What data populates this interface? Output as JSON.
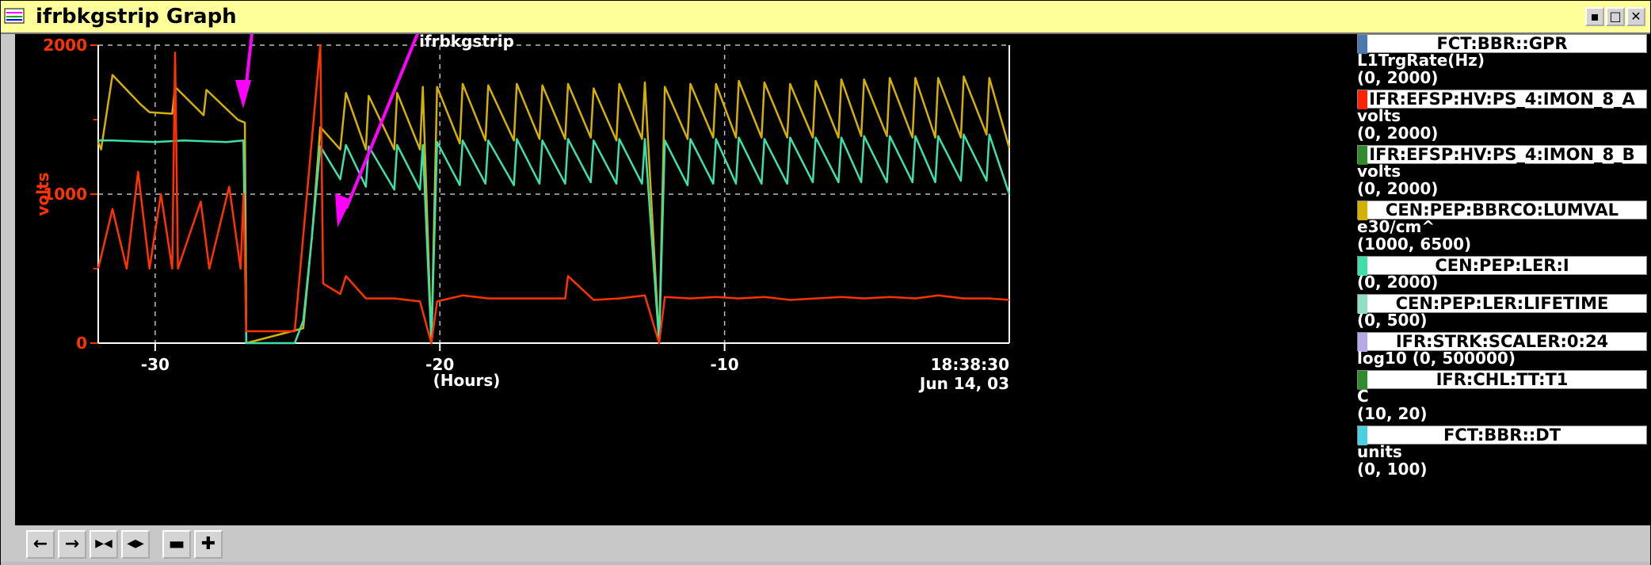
{
  "window": {
    "title": "ifrbkgstrip Graph",
    "buttons": [
      "▪",
      "□",
      "✕"
    ]
  },
  "chart_data": {
    "type": "line",
    "title": "ifrbkgstrip",
    "ylabel": "volts",
    "xlabel": "(Hours)",
    "xlim": [
      -32,
      0
    ],
    "ylim": [
      0,
      2000
    ],
    "x_ticks": [
      -30,
      -20,
      -10
    ],
    "x_tick_labels": [
      "-30",
      "-20",
      "-10"
    ],
    "y_ticks": [
      0,
      1000,
      2000
    ],
    "y_tick_labels": [
      "0",
      "1000",
      "2000"
    ],
    "end_time": "18:38:30",
    "end_date": "Jun 14, 03",
    "grid": true,
    "series": [
      {
        "name": "CEN:PEP:BBRCO:LUMVAL",
        "color": "#d4b000",
        "points": [
          [
            -32,
            1350
          ],
          [
            -31.9,
            1300
          ],
          [
            -31.5,
            1800
          ],
          [
            -30.5,
            1600
          ],
          [
            -30.2,
            1550
          ],
          [
            -29.4,
            1540
          ],
          [
            -29.3,
            1720
          ],
          [
            -28.3,
            1530
          ],
          [
            -28.2,
            1700
          ],
          [
            -27.1,
            1500
          ],
          [
            -26.85,
            1480
          ],
          [
            -26.8,
            0
          ],
          [
            -24.8,
            100
          ],
          [
            -24.5,
            700
          ],
          [
            -24.2,
            1450
          ],
          [
            -23.5,
            1300
          ],
          [
            -23.3,
            1680
          ],
          [
            -22.6,
            1300
          ],
          [
            -22.5,
            1660
          ],
          [
            -21.6,
            1300
          ],
          [
            -21.5,
            1680
          ],
          [
            -20.7,
            1300
          ],
          [
            -20.6,
            1720
          ],
          [
            -20.3,
            0
          ],
          [
            -20.1,
            1720
          ],
          [
            -19.3,
            1340
          ],
          [
            -19.2,
            1740
          ],
          [
            -18.4,
            1360
          ],
          [
            -18.3,
            1730
          ],
          [
            -17.4,
            1360
          ],
          [
            -17.3,
            1740
          ],
          [
            -16.5,
            1370
          ],
          [
            -16.4,
            1730
          ],
          [
            -15.6,
            1370
          ],
          [
            -15.5,
            1740
          ],
          [
            -14.7,
            1380
          ],
          [
            -14.6,
            1710
          ],
          [
            -13.8,
            1360
          ],
          [
            -13.7,
            1740
          ],
          [
            -12.9,
            1370
          ],
          [
            -12.8,
            1750
          ],
          [
            -12.3,
            0
          ],
          [
            -12.1,
            1720
          ],
          [
            -11.3,
            1370
          ],
          [
            -11.2,
            1740
          ],
          [
            -10.4,
            1380
          ],
          [
            -10.3,
            1740
          ],
          [
            -9.6,
            1380
          ],
          [
            -9.5,
            1760
          ],
          [
            -8.7,
            1380
          ],
          [
            -8.6,
            1750
          ],
          [
            -7.8,
            1380
          ],
          [
            -7.7,
            1740
          ],
          [
            -6.9,
            1380
          ],
          [
            -6.8,
            1760
          ],
          [
            -6.0,
            1380
          ],
          [
            -5.9,
            1770
          ],
          [
            -5.2,
            1390
          ],
          [
            -5.1,
            1770
          ],
          [
            -4.3,
            1390
          ],
          [
            -4.2,
            1780
          ],
          [
            -3.4,
            1380
          ],
          [
            -3.3,
            1780
          ],
          [
            -2.6,
            1380
          ],
          [
            -2.5,
            1780
          ],
          [
            -1.7,
            1380
          ],
          [
            -1.6,
            1790
          ],
          [
            -0.8,
            1400
          ],
          [
            -0.7,
            1780
          ],
          [
            0,
            1310
          ]
        ]
      },
      {
        "name": "CEN:PEP:LER:I",
        "color": "#3ee0a8",
        "points": [
          [
            -32,
            1360
          ],
          [
            -31.5,
            1360
          ],
          [
            -30,
            1350
          ],
          [
            -29,
            1360
          ],
          [
            -27.5,
            1350
          ],
          [
            -26.9,
            1360
          ],
          [
            -26.8,
            0
          ],
          [
            -25.1,
            0
          ],
          [
            -24.8,
            150
          ],
          [
            -24.5,
            700
          ],
          [
            -24.2,
            1320
          ],
          [
            -23.5,
            1100
          ],
          [
            -23.3,
            1330
          ],
          [
            -22.6,
            1050
          ],
          [
            -22.5,
            1320
          ],
          [
            -21.6,
            1030
          ],
          [
            -21.5,
            1330
          ],
          [
            -20.7,
            1030
          ],
          [
            -20.6,
            1330
          ],
          [
            -20.3,
            0
          ],
          [
            -20.1,
            1350
          ],
          [
            -19.3,
            1060
          ],
          [
            -19.2,
            1360
          ],
          [
            -18.4,
            1070
          ],
          [
            -18.3,
            1360
          ],
          [
            -17.4,
            1060
          ],
          [
            -17.3,
            1370
          ],
          [
            -16.5,
            1070
          ],
          [
            -16.4,
            1360
          ],
          [
            -15.6,
            1070
          ],
          [
            -15.5,
            1370
          ],
          [
            -14.7,
            1080
          ],
          [
            -14.6,
            1360
          ],
          [
            -13.8,
            1070
          ],
          [
            -13.7,
            1370
          ],
          [
            -12.9,
            1070
          ],
          [
            -12.8,
            1370
          ],
          [
            -12.3,
            0
          ],
          [
            -12.1,
            1360
          ],
          [
            -11.3,
            1060
          ],
          [
            -11.2,
            1370
          ],
          [
            -10.4,
            1070
          ],
          [
            -10.3,
            1370
          ],
          [
            -9.6,
            1070
          ],
          [
            -9.5,
            1380
          ],
          [
            -8.7,
            1070
          ],
          [
            -8.6,
            1370
          ],
          [
            -7.8,
            1070
          ],
          [
            -7.7,
            1380
          ],
          [
            -6.9,
            1080
          ],
          [
            -6.8,
            1380
          ],
          [
            -6.0,
            1080
          ],
          [
            -5.9,
            1380
          ],
          [
            -5.2,
            1080
          ],
          [
            -5.1,
            1390
          ],
          [
            -4.3,
            1080
          ],
          [
            -4.2,
            1390
          ],
          [
            -3.4,
            1080
          ],
          [
            -3.3,
            1390
          ],
          [
            -2.6,
            1080
          ],
          [
            -2.5,
            1390
          ],
          [
            -1.7,
            1090
          ],
          [
            -1.6,
            1400
          ],
          [
            -0.8,
            1090
          ],
          [
            -0.7,
            1400
          ],
          [
            0,
            1000
          ]
        ]
      },
      {
        "name": "IFR:EFSP:HV:PS_4:IMON_8_A",
        "color": "#ff3300",
        "points": [
          [
            -32,
            500
          ],
          [
            -31.5,
            900
          ],
          [
            -31,
            500
          ],
          [
            -30.6,
            1150
          ],
          [
            -30.2,
            500
          ],
          [
            -29.8,
            1000
          ],
          [
            -29.4,
            500
          ],
          [
            -29.3,
            1950
          ],
          [
            -29.2,
            500
          ],
          [
            -28.4,
            950
          ],
          [
            -28.1,
            500
          ],
          [
            -27.4,
            1050
          ],
          [
            -27.0,
            500
          ],
          [
            -26.9,
            1000
          ],
          [
            -26.8,
            80
          ],
          [
            -25.1,
            80
          ],
          [
            -24.2,
            2000
          ],
          [
            -24.1,
            400
          ],
          [
            -23.5,
            330
          ],
          [
            -23.3,
            450
          ],
          [
            -22.6,
            300
          ],
          [
            -21.6,
            300
          ],
          [
            -20.7,
            280
          ],
          [
            -20.3,
            0
          ],
          [
            -20.1,
            280
          ],
          [
            -19.2,
            320
          ],
          [
            -18.3,
            300
          ],
          [
            -17.3,
            300
          ],
          [
            -16.4,
            300
          ],
          [
            -15.6,
            300
          ],
          [
            -15.5,
            450
          ],
          [
            -14.6,
            290
          ],
          [
            -13.7,
            300
          ],
          [
            -12.8,
            320
          ],
          [
            -12.3,
            0
          ],
          [
            -12.1,
            310
          ],
          [
            -11.2,
            300
          ],
          [
            -10.3,
            310
          ],
          [
            -9.5,
            300
          ],
          [
            -8.6,
            310
          ],
          [
            -7.7,
            290
          ],
          [
            -6.8,
            300
          ],
          [
            -5.9,
            310
          ],
          [
            -5.1,
            300
          ],
          [
            -4.2,
            310
          ],
          [
            -3.3,
            300
          ],
          [
            -2.5,
            320
          ],
          [
            -1.6,
            300
          ],
          [
            -0.7,
            300
          ],
          [
            0,
            290
          ]
        ]
      }
    ]
  },
  "legend": [
    {
      "name": "FCT:BBR::GPR",
      "color": "#4a7ab0",
      "lines": [
        "L1TrgRate(Hz)",
        "(0, 2000)"
      ]
    },
    {
      "name": "IFR:EFSP:HV:PS_4:IMON_8_A",
      "color": "#ff2200",
      "lines": [
        "volts",
        "(0, 2000)"
      ]
    },
    {
      "name": "IFR:EFSP:HV:PS_4:IMON_8_B",
      "color": "#2e8b2e",
      "lines": [
        "volts",
        "(0, 2000)"
      ]
    },
    {
      "name": "CEN:PEP:BBRCO:LUMVAL",
      "color": "#d4b000",
      "lines": [
        "e30/cm^",
        "(1000, 6500)"
      ]
    },
    {
      "name": "CEN:PEP:LER:I",
      "color": "#3ee0a8",
      "lines": [
        "(0, 2000)"
      ]
    },
    {
      "name": "CEN:PEP:LER:LIFETIME",
      "color": "#8de0c0",
      "lines": [
        "(0, 500)"
      ]
    },
    {
      "name": "IFR:STRK:SCALER:0:24",
      "color": "#b8a8e8",
      "lines": [
        "log10 (0, 500000)"
      ]
    },
    {
      "name": "IFR:CHL:TT:T1",
      "color": "#2e8b2e",
      "lines": [
        "C",
        "(10, 20)"
      ]
    },
    {
      "name": "FCT:BBR::DT",
      "color": "#4ad0e0",
      "lines": [
        "units",
        "(0, 100)"
      ]
    }
  ],
  "toolbar": {
    "buttons": [
      {
        "label": "←",
        "name": "scroll-left-button"
      },
      {
        "label": "→",
        "name": "scroll-right-button"
      },
      {
        "label": "▶◀",
        "name": "zoom-in-time-button"
      },
      {
        "label": "◀▶",
        "name": "zoom-out-time-button"
      },
      {
        "label": "▬",
        "name": "zoom-in-value-button"
      },
      {
        "label": "✚",
        "name": "zoom-out-value-button"
      }
    ]
  }
}
